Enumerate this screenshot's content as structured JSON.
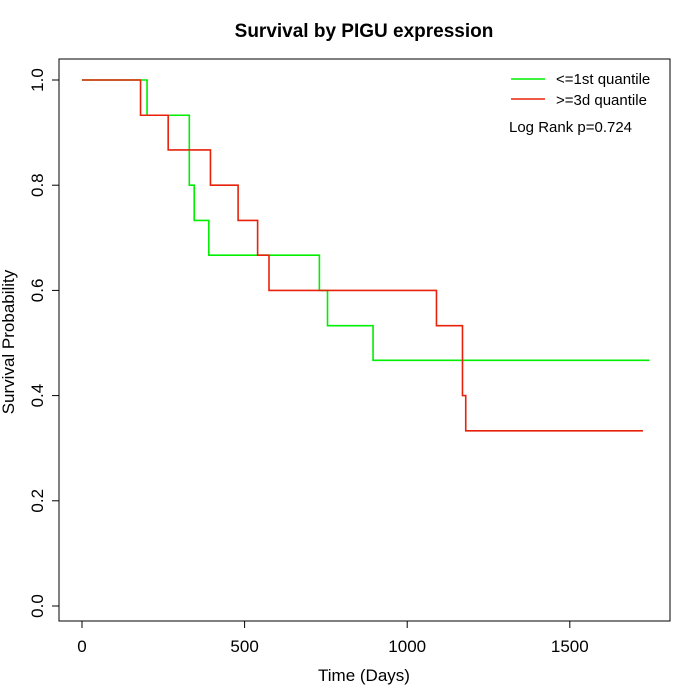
{
  "chart_data": {
    "type": "line",
    "title": "Survival by PIGU expression",
    "xlabel": "Time (Days)",
    "ylabel": "Survival Probability",
    "xlim": [
      0,
      1750
    ],
    "ylim": [
      0,
      1
    ],
    "xticks": [
      0,
      500,
      1000,
      1500
    ],
    "yticks": [
      0.0,
      0.2,
      0.4,
      0.6,
      0.8,
      1.0
    ],
    "xtick_labels": [
      "0",
      "500",
      "1000",
      "1500"
    ],
    "ytick_labels": [
      "0.0",
      "0.2",
      "0.4",
      "0.6",
      "0.8",
      "1.0"
    ],
    "grid": false,
    "legend_position": "top-right",
    "annotation": "Log Rank p=0.724",
    "series": [
      {
        "name": "<=1st quantile",
        "color": "#00ee00",
        "x": [
          0,
          200,
          330,
          345,
          390,
          730,
          755,
          895,
          1745
        ],
        "y": [
          1.0,
          0.933,
          0.8,
          0.733,
          0.667,
          0.6,
          0.533,
          0.467,
          0.467
        ]
      },
      {
        "name": ">=3d quantile",
        "color": "#e8220a",
        "x": [
          0,
          180,
          265,
          395,
          480,
          540,
          575,
          1090,
          1170,
          1180,
          1725
        ],
        "y": [
          1.0,
          0.933,
          0.867,
          0.8,
          0.733,
          0.667,
          0.6,
          0.533,
          0.4,
          0.333,
          0.333
        ]
      }
    ]
  }
}
